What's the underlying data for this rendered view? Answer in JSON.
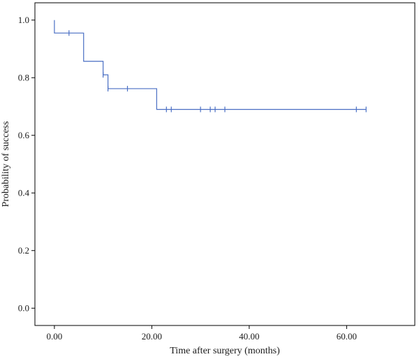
{
  "chart_data": {
    "type": "line",
    "title": "",
    "xlabel": "Time after surgery (months)",
    "ylabel": "Probability of success",
    "xlim": [
      -4,
      74
    ],
    "ylim": [
      -0.06,
      1.06
    ],
    "x_ticks": [
      0,
      20,
      40,
      60
    ],
    "x_tick_labels": [
      "0.00",
      "20.00",
      "40.00",
      "60.00"
    ],
    "y_ticks": [
      0.0,
      0.2,
      0.4,
      0.6,
      0.8,
      1.0
    ],
    "y_tick_labels": [
      "0.0",
      "0.2",
      "0.4",
      "0.6",
      "0.8",
      "1.0"
    ],
    "grid": false,
    "line_color": "#4a6fc4",
    "series": [
      {
        "step": true,
        "x": [
          0,
          0,
          6,
          6,
          10,
          10,
          11,
          11,
          21,
          21,
          64
        ],
        "y": [
          1.0,
          0.955,
          0.955,
          0.857,
          0.857,
          0.81,
          0.81,
          0.762,
          0.762,
          0.69,
          0.69
        ],
        "censored": [
          {
            "x": 3,
            "y": 0.955
          },
          {
            "x": 10,
            "y": 0.81
          },
          {
            "x": 11,
            "y": 0.762
          },
          {
            "x": 15,
            "y": 0.762
          },
          {
            "x": 23,
            "y": 0.69
          },
          {
            "x": 24,
            "y": 0.69
          },
          {
            "x": 30,
            "y": 0.69
          },
          {
            "x": 32,
            "y": 0.69
          },
          {
            "x": 33,
            "y": 0.69
          },
          {
            "x": 35,
            "y": 0.69
          },
          {
            "x": 62,
            "y": 0.69
          },
          {
            "x": 64,
            "y": 0.69
          }
        ]
      }
    ]
  }
}
